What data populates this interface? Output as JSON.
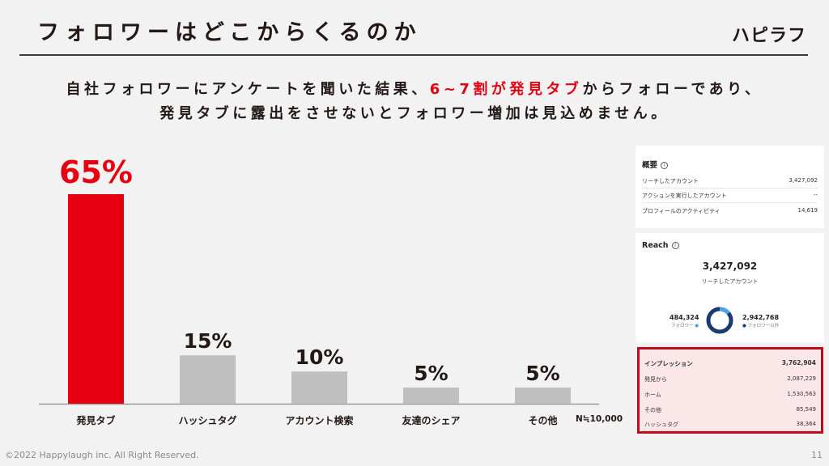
{
  "header": {
    "title": "フォロワーはどこからくるのか",
    "logo": "ハピラフ"
  },
  "subtitle": {
    "line1_before": "自社フォロワーにアンケートを聞いた結果、",
    "line1_highlight": "6~7割が発見タブ",
    "line1_after": "からフォローであり、",
    "line2": "発見タブに露出をさせないとフォロワー増加は見込めません。"
  },
  "chart_data": {
    "type": "bar",
    "categories": [
      "発見タブ",
      "ハッシュタグ",
      "アカウント検索",
      "友達のシェア",
      "その他"
    ],
    "values": [
      65,
      15,
      10,
      5,
      5
    ],
    "value_labels": [
      "65%",
      "15%",
      "10%",
      "5%",
      "5%"
    ],
    "highlight_index": 0,
    "colors": {
      "highlight": "#e60012",
      "default": "#bfbfbf"
    },
    "ylim": [
      0,
      65
    ],
    "note": "N≒10,000"
  },
  "overview_panel": {
    "title": "概要",
    "rows": [
      {
        "label": "リーチしたアカウント",
        "value": "3,427,092"
      },
      {
        "label": "アクションを実行したアカウント",
        "value": "--"
      },
      {
        "label": "プロフィールのアクティビティ",
        "value": "14,619"
      }
    ]
  },
  "reach_panel": {
    "title": "Reach",
    "total": "3,427,092",
    "total_label": "リーチしたアカウント",
    "followers": {
      "value": "484,324",
      "label": "フォロワー"
    },
    "non_followers": {
      "value": "2,942,768",
      "label": "フォロワー以外"
    },
    "follower_share": 0.141,
    "colors": {
      "followers": "#4aa3df",
      "non_followers": "#1b3b6f"
    }
  },
  "impressions_panel": {
    "rows": [
      {
        "label": "インプレッション",
        "value": "3,762,904"
      },
      {
        "label": "発見から",
        "value": "2,087,229"
      },
      {
        "label": "ホーム",
        "value": "1,530,563"
      },
      {
        "label": "その他",
        "value": "85,549"
      },
      {
        "label": "ハッシュタグ",
        "value": "38,364"
      }
    ]
  },
  "footer": {
    "copyright": "©2022 Happylaugh inc. All Right Reserved.",
    "page": "11"
  }
}
